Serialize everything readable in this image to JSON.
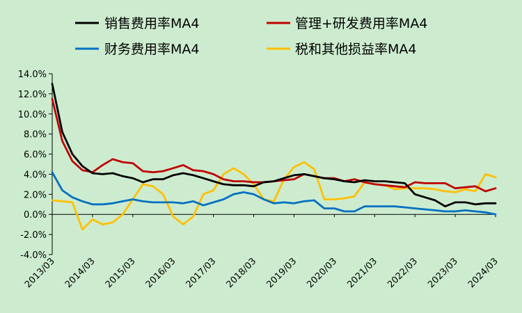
{
  "chart_data": {
    "type": "line",
    "x": [
      "2013/03",
      "2013/06",
      "2013/09",
      "2013/12",
      "2014/03",
      "2014/06",
      "2014/09",
      "2014/12",
      "2015/03",
      "2015/06",
      "2015/09",
      "2015/12",
      "2016/03",
      "2016/06",
      "2016/09",
      "2016/12",
      "2017/03",
      "2017/06",
      "2017/09",
      "2017/12",
      "2018/03",
      "2018/06",
      "2018/09",
      "2018/12",
      "2019/03",
      "2019/06",
      "2019/09",
      "2019/12",
      "2020/03",
      "2020/06",
      "2020/09",
      "2020/12",
      "2021/03",
      "2021/06",
      "2021/09",
      "2021/12",
      "2022/03",
      "2022/06",
      "2022/09",
      "2022/12",
      "2023/03",
      "2023/06",
      "2023/09",
      "2023/12",
      "2024/03"
    ],
    "x_tick_labels": [
      "2013/03",
      "2014/03",
      "2015/03",
      "2016/03",
      "2017/03",
      "2018/03",
      "2019/03",
      "2020/03",
      "2021/03",
      "2022/03",
      "2023/03",
      "2024/03"
    ],
    "y_tick_labels": [
      "14.0%",
      "12.0%",
      "10.0%",
      "8.0%",
      "6.0%",
      "4.0%",
      "2.0%",
      "0.0%",
      "-2.0%",
      "-4.0%"
    ],
    "ylim": [
      -4.0,
      14.0
    ],
    "legend_position": "top",
    "series": [
      {
        "name": "销售费用率MA4",
        "color": "#000000",
        "values": [
          13.0,
          8.2,
          6.0,
          4.8,
          4.1,
          4.0,
          4.1,
          3.8,
          3.6,
          3.2,
          3.5,
          3.5,
          3.9,
          4.1,
          3.9,
          3.6,
          3.3,
          3.0,
          2.9,
          2.9,
          2.8,
          3.2,
          3.3,
          3.6,
          3.9,
          4.0,
          3.8,
          3.6,
          3.5,
          3.3,
          3.2,
          3.4,
          3.3,
          3.3,
          3.2,
          3.1,
          2.0,
          1.7,
          1.4,
          0.8,
          1.2,
          1.2,
          1.0,
          1.1,
          1.1
        ]
      },
      {
        "name": "管理+研发费用率MA4",
        "color": "#c00000",
        "values": [
          11.5,
          7.3,
          5.3,
          4.4,
          4.2,
          4.9,
          5.5,
          5.2,
          5.1,
          4.3,
          4.2,
          4.3,
          4.6,
          4.9,
          4.4,
          4.3,
          4.0,
          3.5,
          3.3,
          3.3,
          3.2,
          3.2,
          3.3,
          3.4,
          3.5,
          4.0,
          3.8,
          3.6,
          3.6,
          3.3,
          3.5,
          3.2,
          3.0,
          2.9,
          2.8,
          2.7,
          3.2,
          3.1,
          3.1,
          3.1,
          2.6,
          2.7,
          2.8,
          2.3,
          2.6
        ]
      },
      {
        "name": "财务费用率MA4",
        "color": "#0070c0",
        "values": [
          4.2,
          2.4,
          1.7,
          1.3,
          1.0,
          1.0,
          1.1,
          1.3,
          1.5,
          1.3,
          1.2,
          1.2,
          1.2,
          1.1,
          1.3,
          0.9,
          1.2,
          1.5,
          2.0,
          2.2,
          2.0,
          1.5,
          1.1,
          1.2,
          1.1,
          1.3,
          1.4,
          0.6,
          0.6,
          0.3,
          0.3,
          0.8,
          0.8,
          0.8,
          0.8,
          0.7,
          0.6,
          0.5,
          0.4,
          0.3,
          0.3,
          0.4,
          0.3,
          0.2,
          0.0
        ]
      },
      {
        "name": "税和其他损益率MA4",
        "color": "#ffc000",
        "values": [
          1.4,
          1.3,
          1.2,
          -1.5,
          -0.5,
          -1.0,
          -0.8,
          0.0,
          1.5,
          3.0,
          2.8,
          2.0,
          -0.2,
          -1.0,
          -0.2,
          2.0,
          2.4,
          4.0,
          4.6,
          4.0,
          3.0,
          1.5,
          1.3,
          3.5,
          4.7,
          5.2,
          4.5,
          1.5,
          1.5,
          1.6,
          1.8,
          3.2,
          3.0,
          2.9,
          2.5,
          2.6,
          2.6,
          2.6,
          2.5,
          2.3,
          2.2,
          2.5,
          2.3,
          4.0,
          3.7
        ]
      }
    ]
  }
}
